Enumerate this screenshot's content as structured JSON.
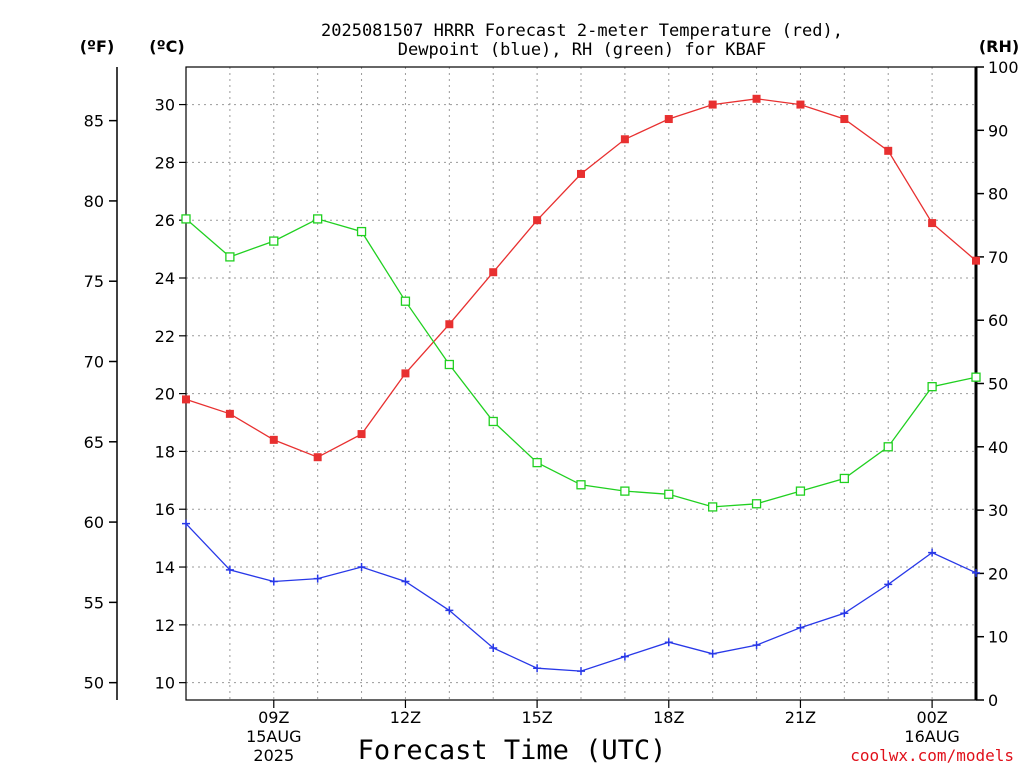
{
  "chart_data": {
    "type": "line",
    "title_lines": [
      "2025081507 HRRR Forecast 2-meter Temperature (red),",
      "Dewpoint (blue), RH (green) for KBAF"
    ],
    "xlabel": "Forecast Time (UTC)",
    "credit": "coolwx.com/models",
    "units": {
      "fahrenheit": "(ºF)",
      "celsius": "(ºC)",
      "rh": "(RH)"
    },
    "x_hours": [
      7,
      8,
      9,
      10,
      11,
      12,
      13,
      14,
      15,
      16,
      17,
      18,
      19,
      20,
      21,
      22,
      23,
      24,
      25
    ],
    "x_ticks": [
      {
        "hour": 9,
        "lines": [
          "09Z",
          "15AUG",
          "2025"
        ]
      },
      {
        "hour": 12,
        "lines": [
          "12Z"
        ]
      },
      {
        "hour": 15,
        "lines": [
          "15Z"
        ]
      },
      {
        "hour": 18,
        "lines": [
          "18Z"
        ]
      },
      {
        "hour": 21,
        "lines": [
          "21Z"
        ]
      },
      {
        "hour": 24,
        "lines": [
          "00Z",
          "16AUG"
        ]
      }
    ],
    "xlim": [
      7,
      25
    ],
    "celsius_axis": {
      "range": [
        9.4,
        31.3
      ],
      "ticks": [
        10,
        12,
        14,
        16,
        18,
        20,
        22,
        24,
        26,
        28,
        30
      ]
    },
    "fahrenheit_axis": {
      "ticks": [
        50,
        55,
        60,
        65,
        70,
        75,
        80,
        85
      ]
    },
    "rh_axis": {
      "range": [
        0,
        100
      ],
      "ticks": [
        0,
        10,
        20,
        30,
        40,
        50,
        60,
        70,
        80,
        90,
        100
      ]
    },
    "series": [
      {
        "name": "Temperature",
        "axis": "celsius",
        "color": "#e83030",
        "marker": "filled-square",
        "values": [
          19.8,
          19.3,
          18.4,
          17.8,
          18.6,
          20.7,
          22.4,
          24.2,
          26.0,
          27.6,
          28.8,
          29.5,
          30.0,
          30.2,
          30.0,
          29.5,
          28.4,
          25.9,
          24.6
        ]
      },
      {
        "name": "Dewpoint",
        "axis": "celsius",
        "color": "#2838e8",
        "marker": "plus",
        "values": [
          15.5,
          13.9,
          13.5,
          13.6,
          14.0,
          13.5,
          12.5,
          11.2,
          10.5,
          10.4,
          10.9,
          11.4,
          11.0,
          11.3,
          11.9,
          12.4,
          13.4,
          14.5,
          13.8
        ]
      },
      {
        "name": "RH",
        "axis": "rh",
        "color": "#20d020",
        "marker": "open-square",
        "values": [
          76,
          70,
          72.5,
          76,
          74,
          63,
          53,
          44,
          37.5,
          34,
          33,
          32.5,
          30.5,
          31,
          33,
          35,
          40,
          49.5,
          51
        ]
      }
    ]
  }
}
